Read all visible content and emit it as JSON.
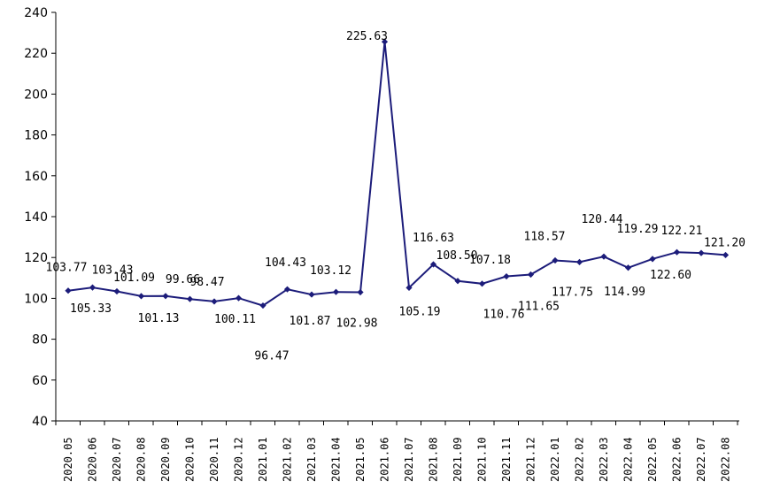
{
  "chart_data": {
    "type": "line",
    "title": "",
    "xlabel": "",
    "ylabel": "",
    "ylim": [
      40,
      240
    ],
    "yticks": [
      40,
      60,
      80,
      100,
      120,
      140,
      160,
      180,
      200,
      220,
      240
    ],
    "grid": false,
    "colors": {
      "series": "#1c1c7a",
      "axis": "#000000"
    },
    "categories": [
      "2020.05",
      "2020.06",
      "2020.07",
      "2020.08",
      "2020.09",
      "2020.10",
      "2020.11",
      "2020.12",
      "2021.01",
      "2021.02",
      "2021.03",
      "2021.04",
      "2021.05",
      "2021.06",
      "2021.07",
      "2021.08",
      "2021.09",
      "2021.10",
      "2021.11",
      "2021.12",
      "2022.01",
      "2022.02",
      "2022.03",
      "2022.04",
      "2022.05",
      "2022.06",
      "2022.07",
      "2022.08"
    ],
    "series": [
      {
        "values": [
          103.77,
          105.33,
          103.43,
          101.09,
          101.13,
          99.66,
          98.47,
          100.11,
          96.47,
          104.43,
          101.87,
          103.12,
          102.98,
          225.63,
          105.19,
          116.63,
          108.5,
          107.18,
          110.76,
          111.65,
          118.57,
          117.75,
          120.44,
          114.99,
          119.29,
          122.6,
          122.21,
          121.2
        ],
        "labels": [
          "103.77",
          "105.33",
          "103.43",
          "101.09",
          "101.13",
          "99.66",
          "98.47",
          "100.11",
          "96.47",
          "104.43",
          "101.87",
          "103.12",
          "102.98",
          "225.63",
          "105.19",
          "116.63",
          "108.50",
          "107.18",
          "110.76",
          "111.65",
          "118.57",
          "117.75",
          "120.44",
          "114.99",
          "119.29",
          "122.60",
          "122.21",
          "121.20"
        ]
      }
    ]
  }
}
